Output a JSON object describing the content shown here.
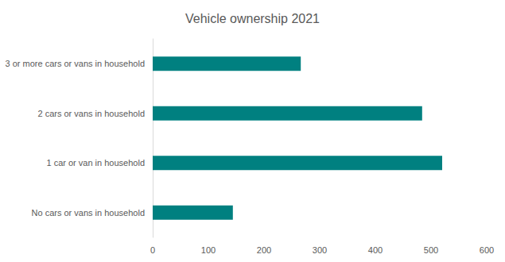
{
  "chart_data": {
    "type": "bar",
    "title": "Vehicle ownership 2021",
    "orientation": "horizontal",
    "categories": [
      "No cars or vans in household",
      "1 car or van in household",
      "2 cars or vans in household",
      "3 or more cars or vans in household"
    ],
    "values": [
      144,
      520,
      484,
      266
    ],
    "color": "#008080",
    "xlim": [
      0,
      600
    ],
    "xticks": [
      0,
      100,
      200,
      300,
      400,
      500,
      600
    ],
    "grid": false
  }
}
